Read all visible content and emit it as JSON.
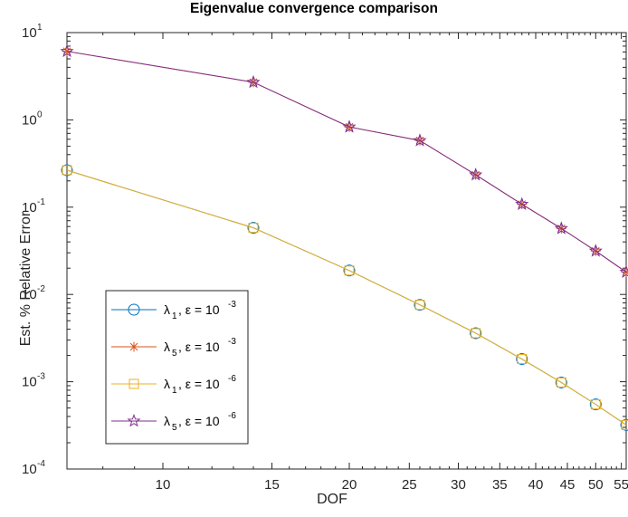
{
  "chart_data": {
    "type": "line",
    "title": "Eigenvalue convergence comparison",
    "xlabel": "DOF",
    "ylabel": "Est. % Relative Error",
    "xscale": "log",
    "yscale": "log",
    "xlim": [
      7,
      56
    ],
    "ylim": [
      0.0001,
      10
    ],
    "x_ticks": [
      10,
      15,
      20,
      25,
      30,
      35,
      40,
      45,
      50,
      55
    ],
    "y_tick_bases": [
      "10",
      "10",
      "10",
      "10",
      "10",
      "10"
    ],
    "y_tick_exponents": [
      "-4",
      "-3",
      "-2",
      "-1",
      "0",
      "1"
    ],
    "grid": false,
    "box": true,
    "legend_position": "lower-left",
    "x": [
      7,
      14,
      20,
      26,
      32,
      38,
      44,
      50,
      56
    ],
    "series": [
      {
        "name": "λ1, ε = 10-3",
        "legend_symbol": "λ",
        "legend_subscript": "1",
        "legend_mid": ", ε = 10",
        "legend_exponent": "-3",
        "color": "#0072BD",
        "marker": "circle",
        "values": [
          0.265,
          0.058,
          0.0188,
          0.0076,
          0.0036,
          0.00182,
          0.00098,
          0.00055,
          0.00032
        ]
      },
      {
        "name": "λ5, ε = 10-3",
        "legend_symbol": "λ",
        "legend_subscript": "5",
        "legend_mid": ", ε = 10",
        "legend_exponent": "-3",
        "color": "#D95319",
        "marker": "asterisk",
        "values": [
          6.1,
          2.7,
          0.83,
          0.58,
          0.235,
          0.108,
          0.057,
          0.0315,
          0.018
        ]
      },
      {
        "name": "λ1, ε = 10-6",
        "legend_symbol": "λ",
        "legend_subscript": "1",
        "legend_mid": ", ε = 10",
        "legend_exponent": "-6",
        "color": "#EDB120",
        "marker": "square",
        "values": [
          0.265,
          0.058,
          0.0188,
          0.0076,
          0.0036,
          0.00182,
          0.00098,
          0.00055,
          0.00032
        ]
      },
      {
        "name": "λ5, ε = 10-6",
        "legend_symbol": "λ",
        "legend_subscript": "5",
        "legend_mid": ", ε = 10",
        "legend_exponent": "-6",
        "color": "#7E2F8E",
        "marker": "pentagram",
        "values": [
          6.1,
          2.7,
          0.83,
          0.58,
          0.235,
          0.108,
          0.057,
          0.0315,
          0.018
        ]
      }
    ]
  }
}
